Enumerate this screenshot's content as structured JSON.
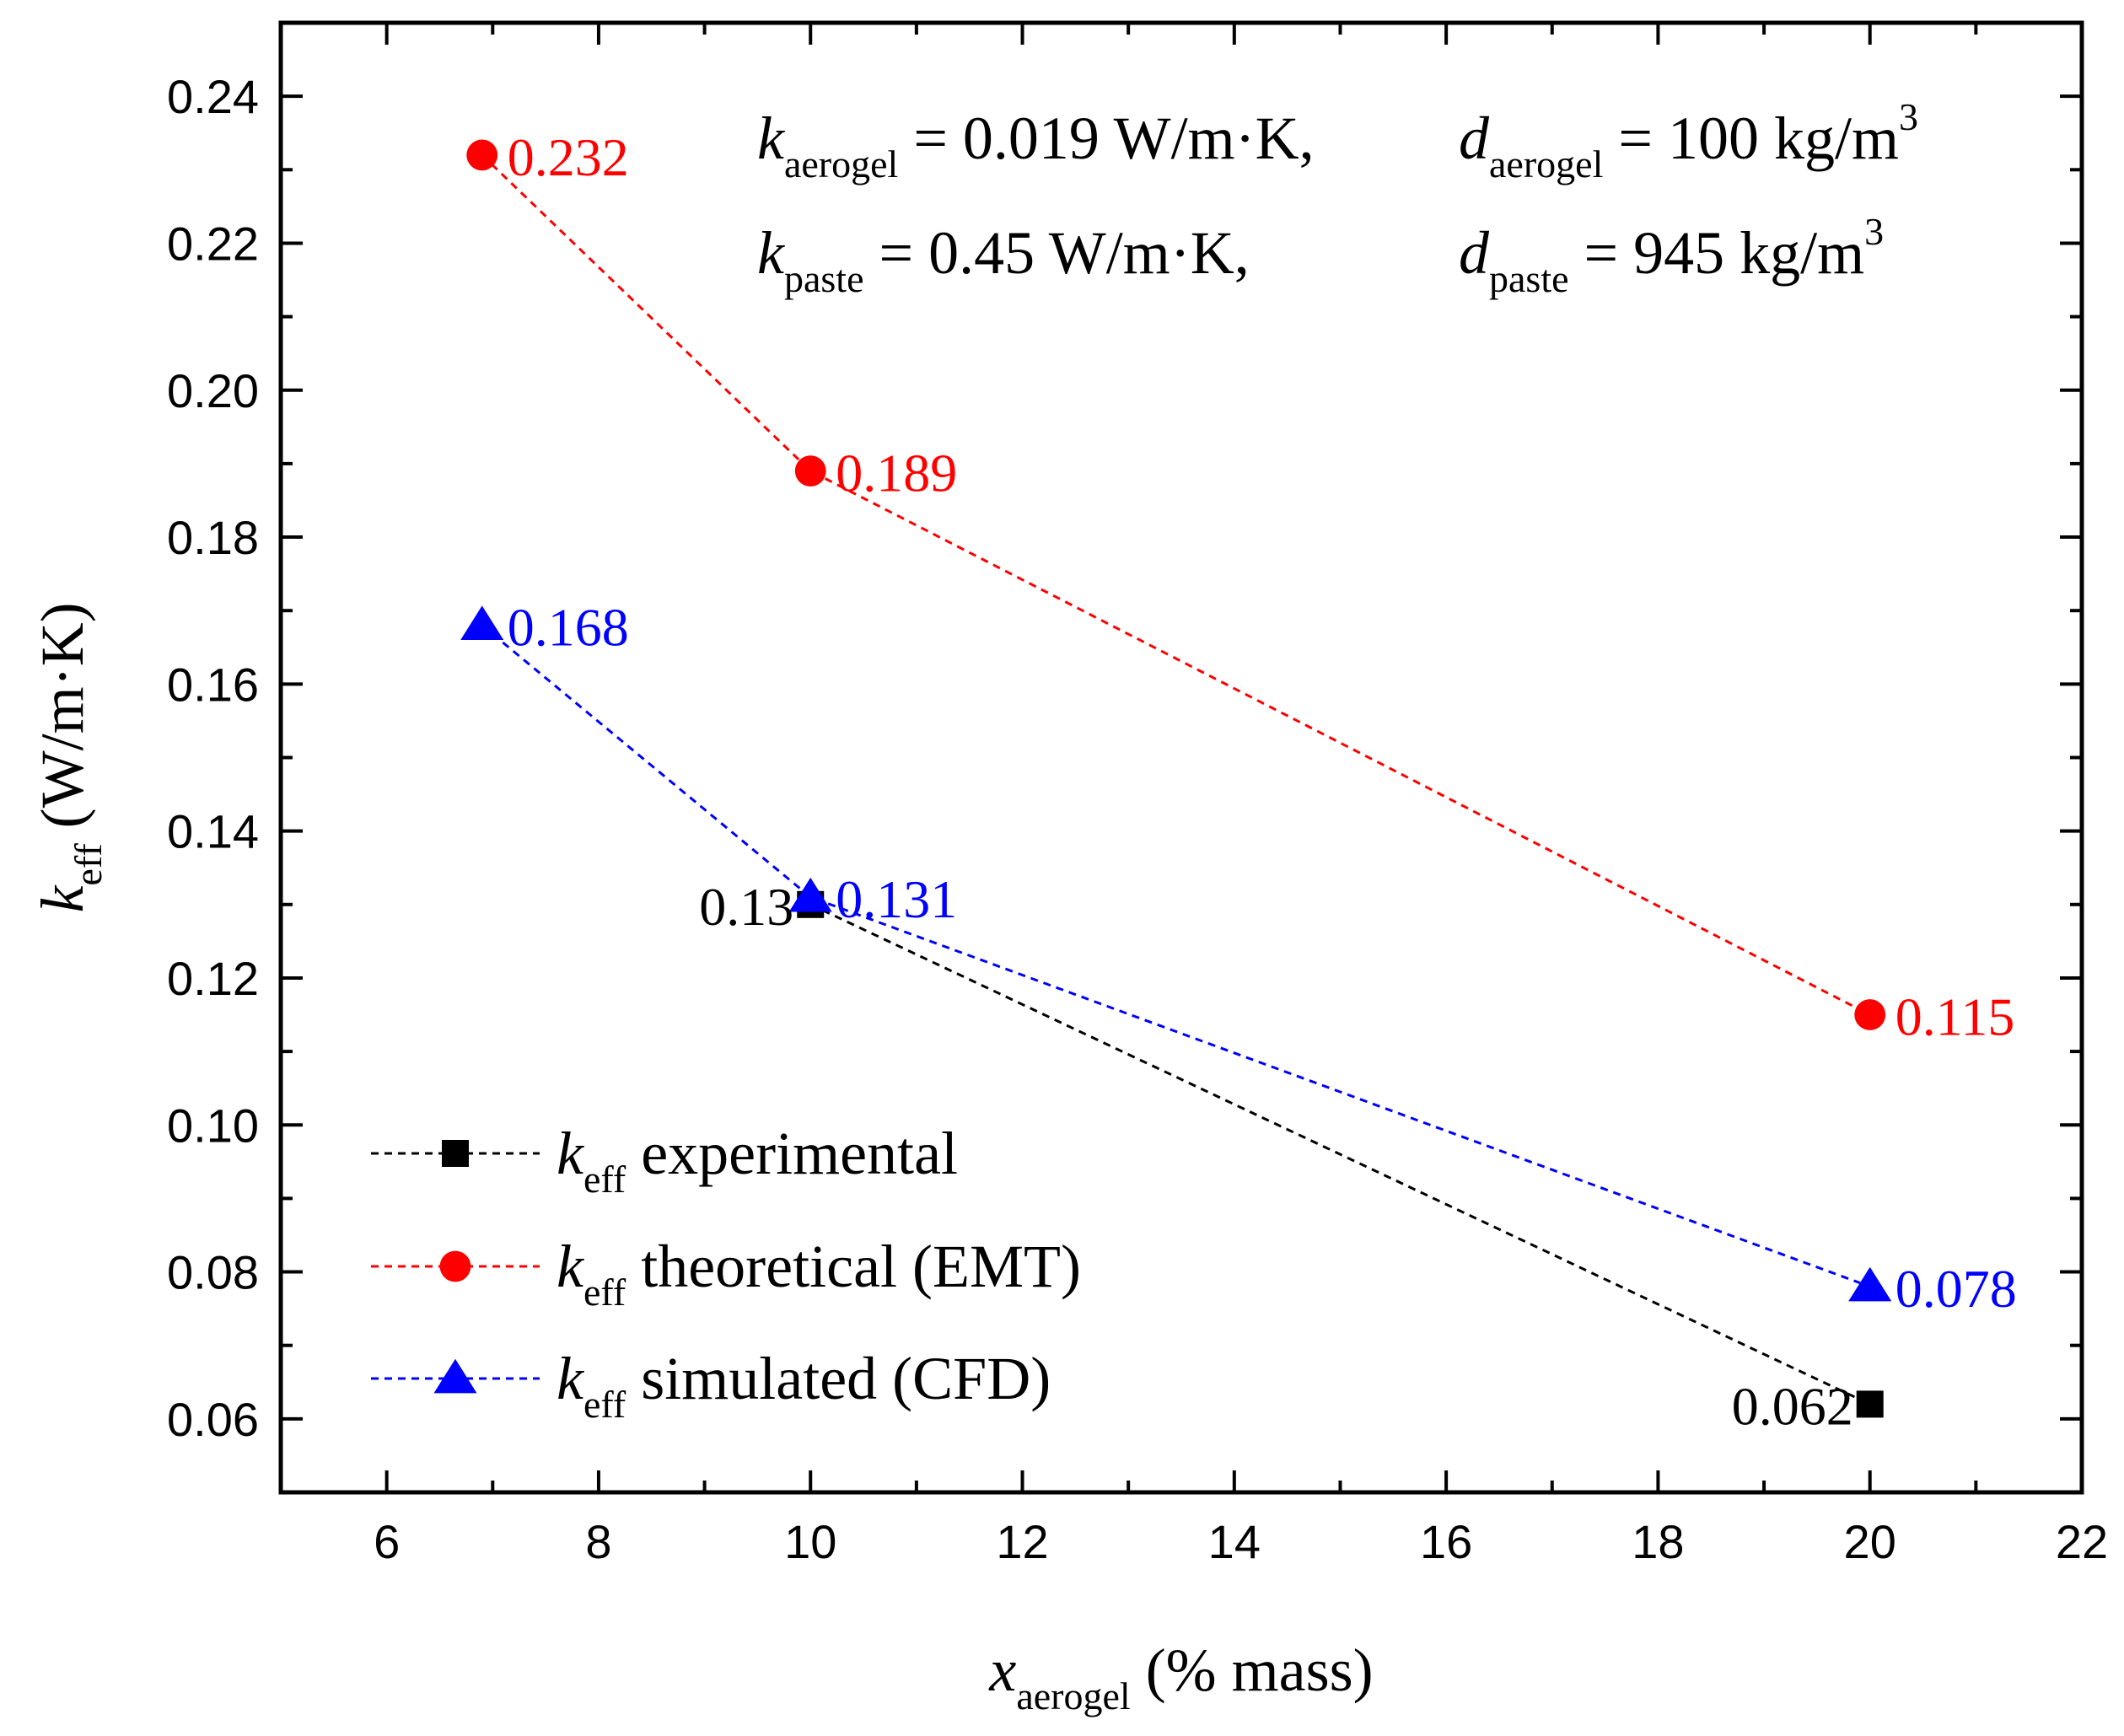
{
  "chart_data": {
    "type": "line",
    "x_axis": {
      "label_main": "x",
      "label_sub": "aerogel",
      "label_rest": " (% mass)",
      "range": [
        5,
        22
      ],
      "ticks": [
        6,
        8,
        10,
        12,
        14,
        16,
        18,
        20,
        22
      ],
      "tick_labels": [
        "6",
        "8",
        "10",
        "12",
        "14",
        "16",
        "18",
        "20",
        "22"
      ]
    },
    "y_axis": {
      "label_main": "k",
      "label_sub": "eff",
      "label_rest": " (W/m·K)",
      "range": [
        0.05,
        0.25
      ],
      "ticks": [
        0.06,
        0.08,
        0.1,
        0.12,
        0.14,
        0.16,
        0.18,
        0.2,
        0.22,
        0.24
      ],
      "tick_labels": [
        "0.06",
        "0.08",
        "0.10",
        "0.12",
        "0.14",
        "0.16",
        "0.18",
        "0.20",
        "0.22",
        "0.24"
      ]
    },
    "series": [
      {
        "name": "k_eff experimental",
        "legend_main": "k",
        "legend_sub": "eff",
        "legend_rest": " experimental",
        "color": "#000000",
        "marker": "square",
        "x": [
          10,
          20
        ],
        "y": [
          0.13,
          0.062
        ],
        "labels": [
          "0.13",
          "0.062"
        ],
        "label_side": "left"
      },
      {
        "name": "k_eff theoretical (EMT)",
        "legend_main": "k",
        "legend_sub": "eff",
        "legend_rest": " theoretical (EMT)",
        "color": "#ff0000",
        "marker": "circle",
        "x": [
          6.9,
          10,
          20
        ],
        "y": [
          0.232,
          0.189,
          0.115
        ],
        "labels": [
          "0.232",
          "0.189",
          "0.115"
        ],
        "label_side": "right"
      },
      {
        "name": "k_eff simulated (CFD)",
        "legend_main": "k",
        "legend_sub": "eff",
        "legend_rest": " simulated (CFD)",
        "color": "#0000ff",
        "marker": "triangle",
        "x": [
          6.9,
          10,
          20
        ],
        "y": [
          0.168,
          0.131,
          0.078
        ],
        "labels": [
          "0.168",
          "0.131",
          "0.078"
        ],
        "label_side": "right"
      }
    ],
    "parameters": [
      {
        "k_main": "k",
        "k_sub": "aerogel",
        "k_value": " = 0.019 W/m·K,",
        "d_main": "d",
        "d_sub": "aerogel",
        "d_value": " = 100 kg/m",
        "d_sup": "3"
      },
      {
        "k_main": "k",
        "k_sub": "paste",
        "k_value": " = 0.45 W/m·K,",
        "d_main": "d",
        "d_sub": "paste",
        "d_value": " = 945 kg/m",
        "d_sup": "3"
      }
    ],
    "legend_position": "bottom-left",
    "grid": false
  }
}
